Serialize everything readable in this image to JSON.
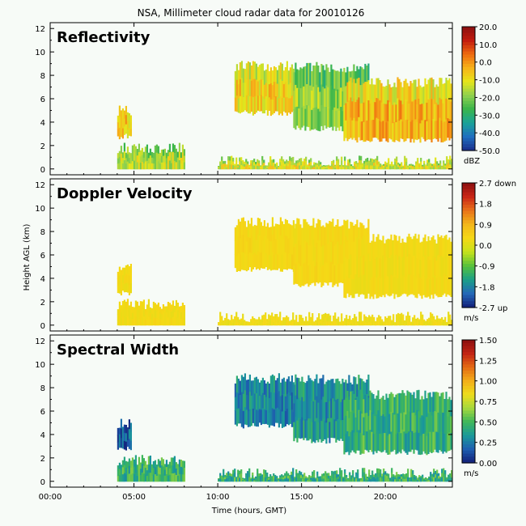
{
  "title": "NSA, Millimeter cloud radar data for 20010126",
  "y_axis_label": "Height AGL (km)",
  "x_axis_label": "Time (hours, GMT)",
  "colors": {
    "background": "#f7fbf7",
    "frame": "#000000",
    "reflectivity_ramp": [
      "#1b2f8c",
      "#1f6fbf",
      "#1aa39a",
      "#39b54a",
      "#8fd14f",
      "#e6e61a",
      "#f7b21a",
      "#ee6a10",
      "#c21b0f",
      "#8a1010"
    ],
    "velocity_ramp": [
      "#13207a",
      "#2468b8",
      "#1a9f88",
      "#58c23b",
      "#c5e21c",
      "#f5d916",
      "#f3b71a",
      "#e8721a",
      "#c92616",
      "#8a1010"
    ],
    "width_ramp": [
      "#13207a",
      "#1f5fb0",
      "#1a9a9a",
      "#3fb75a",
      "#a6d83c",
      "#eedd1c",
      "#f3ae1a",
      "#e46a14",
      "#c22414",
      "#8a1010"
    ]
  },
  "chart_data": [
    {
      "type": "heatmap",
      "panel_label": "Reflectivity",
      "colormap": "reflectivity_ramp",
      "xlim": [
        0,
        24
      ],
      "ylim": [
        -0.5,
        12.5
      ],
      "yticks": [
        "0",
        "2",
        "4",
        "6",
        "8",
        "10",
        "12"
      ],
      "xticks": [
        "00:00",
        "05:00",
        "10:00",
        "15:00",
        "20:00"
      ],
      "colorbar": {
        "ticks": [
          "20.0",
          "10.0",
          "0.0",
          "-10.0",
          "-20.0",
          "-30.0",
          "-40.0",
          "-50.0"
        ],
        "unit": "dBZ"
      },
      "echoes": [
        {
          "t": [
            4.0,
            4.8
          ],
          "h": [
            2.8,
            5.0
          ],
          "level": 0.62
        },
        {
          "t": [
            4.0,
            8.0
          ],
          "h": [
            0.0,
            1.8
          ],
          "level": 0.5
        },
        {
          "t": [
            10.0,
            24.0
          ],
          "h": [
            0.0,
            0.7
          ],
          "level": 0.55
        },
        {
          "t": [
            11.0,
            14.5
          ],
          "h": [
            4.8,
            8.8
          ],
          "level": 0.6
        },
        {
          "t": [
            14.5,
            19.0
          ],
          "h": [
            3.5,
            8.7
          ],
          "level": 0.45
        },
        {
          "t": [
            17.5,
            24.0
          ],
          "h": [
            2.5,
            7.4
          ],
          "level": 0.66
        }
      ]
    },
    {
      "type": "heatmap",
      "panel_label": "Doppler Velocity",
      "colormap": "velocity_ramp",
      "xlim": [
        0,
        24
      ],
      "ylim": [
        -0.5,
        12.5
      ],
      "yticks": [
        "0",
        "2",
        "4",
        "6",
        "8",
        "10",
        "12"
      ],
      "xticks": [
        "00:00",
        "05:00",
        "10:00",
        "15:00",
        "20:00"
      ],
      "colorbar": {
        "ticks": [
          "2.7 down",
          "1.8",
          "0.9",
          "0.0",
          "-0.9",
          "-1.8",
          "-2.7 up"
        ],
        "unit": "m/s"
      },
      "echoes": [
        {
          "t": [
            4.0,
            4.8
          ],
          "h": [
            2.8,
            5.0
          ],
          "level": 0.55
        },
        {
          "t": [
            4.0,
            8.0
          ],
          "h": [
            0.0,
            1.8
          ],
          "level": 0.55
        },
        {
          "t": [
            10.0,
            24.0
          ],
          "h": [
            0.0,
            0.7
          ],
          "level": 0.54
        },
        {
          "t": [
            11.0,
            14.5
          ],
          "h": [
            4.8,
            8.8
          ],
          "level": 0.56
        },
        {
          "t": [
            14.5,
            19.0
          ],
          "h": [
            3.5,
            8.7
          ],
          "level": 0.56
        },
        {
          "t": [
            17.5,
            24.0
          ],
          "h": [
            2.5,
            7.4
          ],
          "level": 0.55
        }
      ]
    },
    {
      "type": "heatmap",
      "panel_label": "Spectral Width",
      "colormap": "width_ramp",
      "xlim": [
        0,
        24
      ],
      "ylim": [
        -0.5,
        12.5
      ],
      "yticks": [
        "0",
        "2",
        "4",
        "6",
        "8",
        "10",
        "12"
      ],
      "xticks": [
        "00:00",
        "05:00",
        "10:00",
        "15:00",
        "20:00"
      ],
      "colorbar": {
        "ticks": [
          "1.50",
          "1.25",
          "1.00",
          "0.75",
          "0.50",
          "0.25",
          "0.00"
        ],
        "unit": "m/s"
      },
      "echoes": [
        {
          "t": [
            4.0,
            4.8
          ],
          "h": [
            2.8,
            5.0
          ],
          "level": 0.12
        },
        {
          "t": [
            4.0,
            8.0
          ],
          "h": [
            0.0,
            1.8
          ],
          "level": 0.3
        },
        {
          "t": [
            10.0,
            24.0
          ],
          "h": [
            0.0,
            0.7
          ],
          "level": 0.3
        },
        {
          "t": [
            11.0,
            14.5
          ],
          "h": [
            4.8,
            8.8
          ],
          "level": 0.2
        },
        {
          "t": [
            14.5,
            19.0
          ],
          "h": [
            3.5,
            8.7
          ],
          "level": 0.22
        },
        {
          "t": [
            17.5,
            24.0
          ],
          "h": [
            2.5,
            7.4
          ],
          "level": 0.3
        }
      ]
    }
  ]
}
